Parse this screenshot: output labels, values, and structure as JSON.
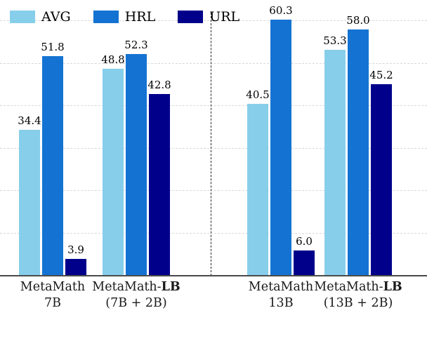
{
  "chart_data": {
    "type": "bar",
    "title": "",
    "xlabel": "",
    "ylabel": "",
    "ylim": [
      0,
      62
    ],
    "grid": true,
    "gridline_step": 10,
    "legend_position": "top-left",
    "separator_after_group": 2,
    "categories": [
      {
        "line1_normal": "MetaMath",
        "line1_bold": "",
        "line2": "7B"
      },
      {
        "line1_normal": "MetaMath-",
        "line1_bold": "LB",
        "line2": "(7B + 2B)"
      },
      {
        "line1_normal": "MetaMath",
        "line1_bold": "",
        "line2": "13B"
      },
      {
        "line1_normal": "MetaMath-",
        "line1_bold": "LB",
        "line2": "(13B + 2B)"
      }
    ],
    "series": [
      {
        "name": "AVG",
        "color": "#87CEEB",
        "values": [
          34.4,
          48.8,
          40.5,
          53.3
        ]
      },
      {
        "name": "HRL",
        "color": "#1473D2",
        "values": [
          51.8,
          52.3,
          60.3,
          58.0
        ]
      },
      {
        "name": "URL",
        "color": "#00008B",
        "values": [
          3.9,
          42.8,
          6.0,
          45.2
        ]
      }
    ],
    "colors": {
      "axis": "#4a4a4a",
      "gridline": "#d9d9d9",
      "separator": "#222222",
      "background": "#ffffff"
    }
  }
}
